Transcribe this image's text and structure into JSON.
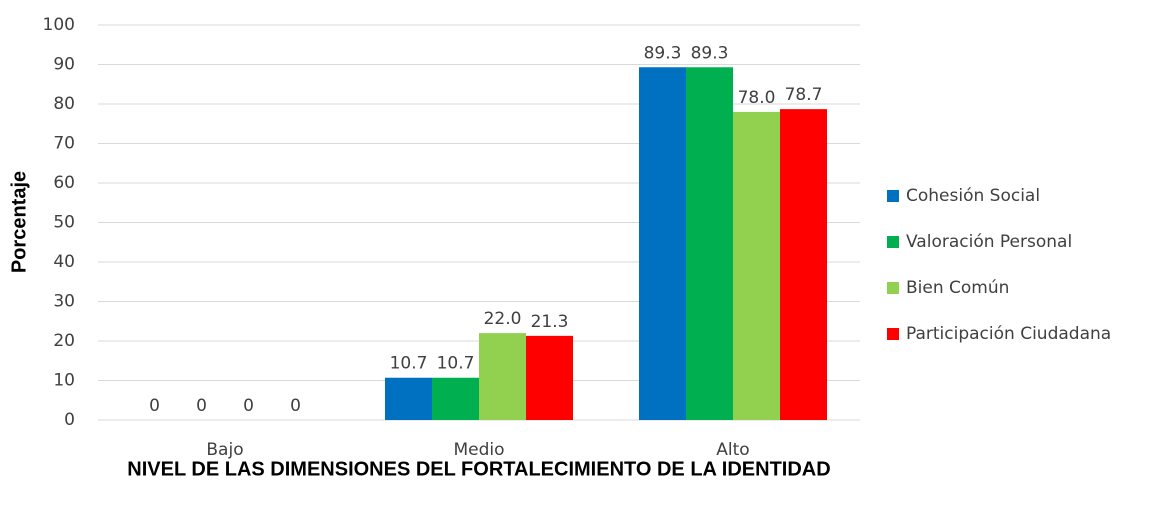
{
  "chart_data": {
    "type": "bar",
    "x_label": "NIVEL DE LAS DIMENSIONES DEL FORTALECIMIENTO DE LA IDENTIDAD",
    "y_label": "Porcentaje",
    "categories": [
      "Bajo",
      "Medio",
      "Alto"
    ],
    "series": [
      {
        "name": "Cohesión Social",
        "color": "#0070c0",
        "values": [
          0,
          10.7,
          89.3
        ],
        "value_labels": [
          "0",
          "10.7",
          "89.3"
        ]
      },
      {
        "name": "Valoración Personal",
        "color": "#00b050",
        "values": [
          0,
          10.7,
          89.3
        ],
        "value_labels": [
          "0",
          "10.7",
          "89.3"
        ]
      },
      {
        "name": "Bien Común",
        "color": "#92d050",
        "values": [
          0,
          22.0,
          78.0
        ],
        "value_labels": [
          "0",
          "22.0",
          "78.0"
        ]
      },
      {
        "name": "Participación Ciudadana",
        "color": "#ff0000",
        "values": [
          0,
          21.3,
          78.7
        ],
        "value_labels": [
          "0",
          "21.3",
          "78.7"
        ]
      }
    ],
    "ylim": [
      0,
      100
    ],
    "yticks": [
      0,
      10,
      20,
      30,
      40,
      50,
      60,
      70,
      80,
      90,
      100
    ],
    "grid": true,
    "legend": "right"
  }
}
